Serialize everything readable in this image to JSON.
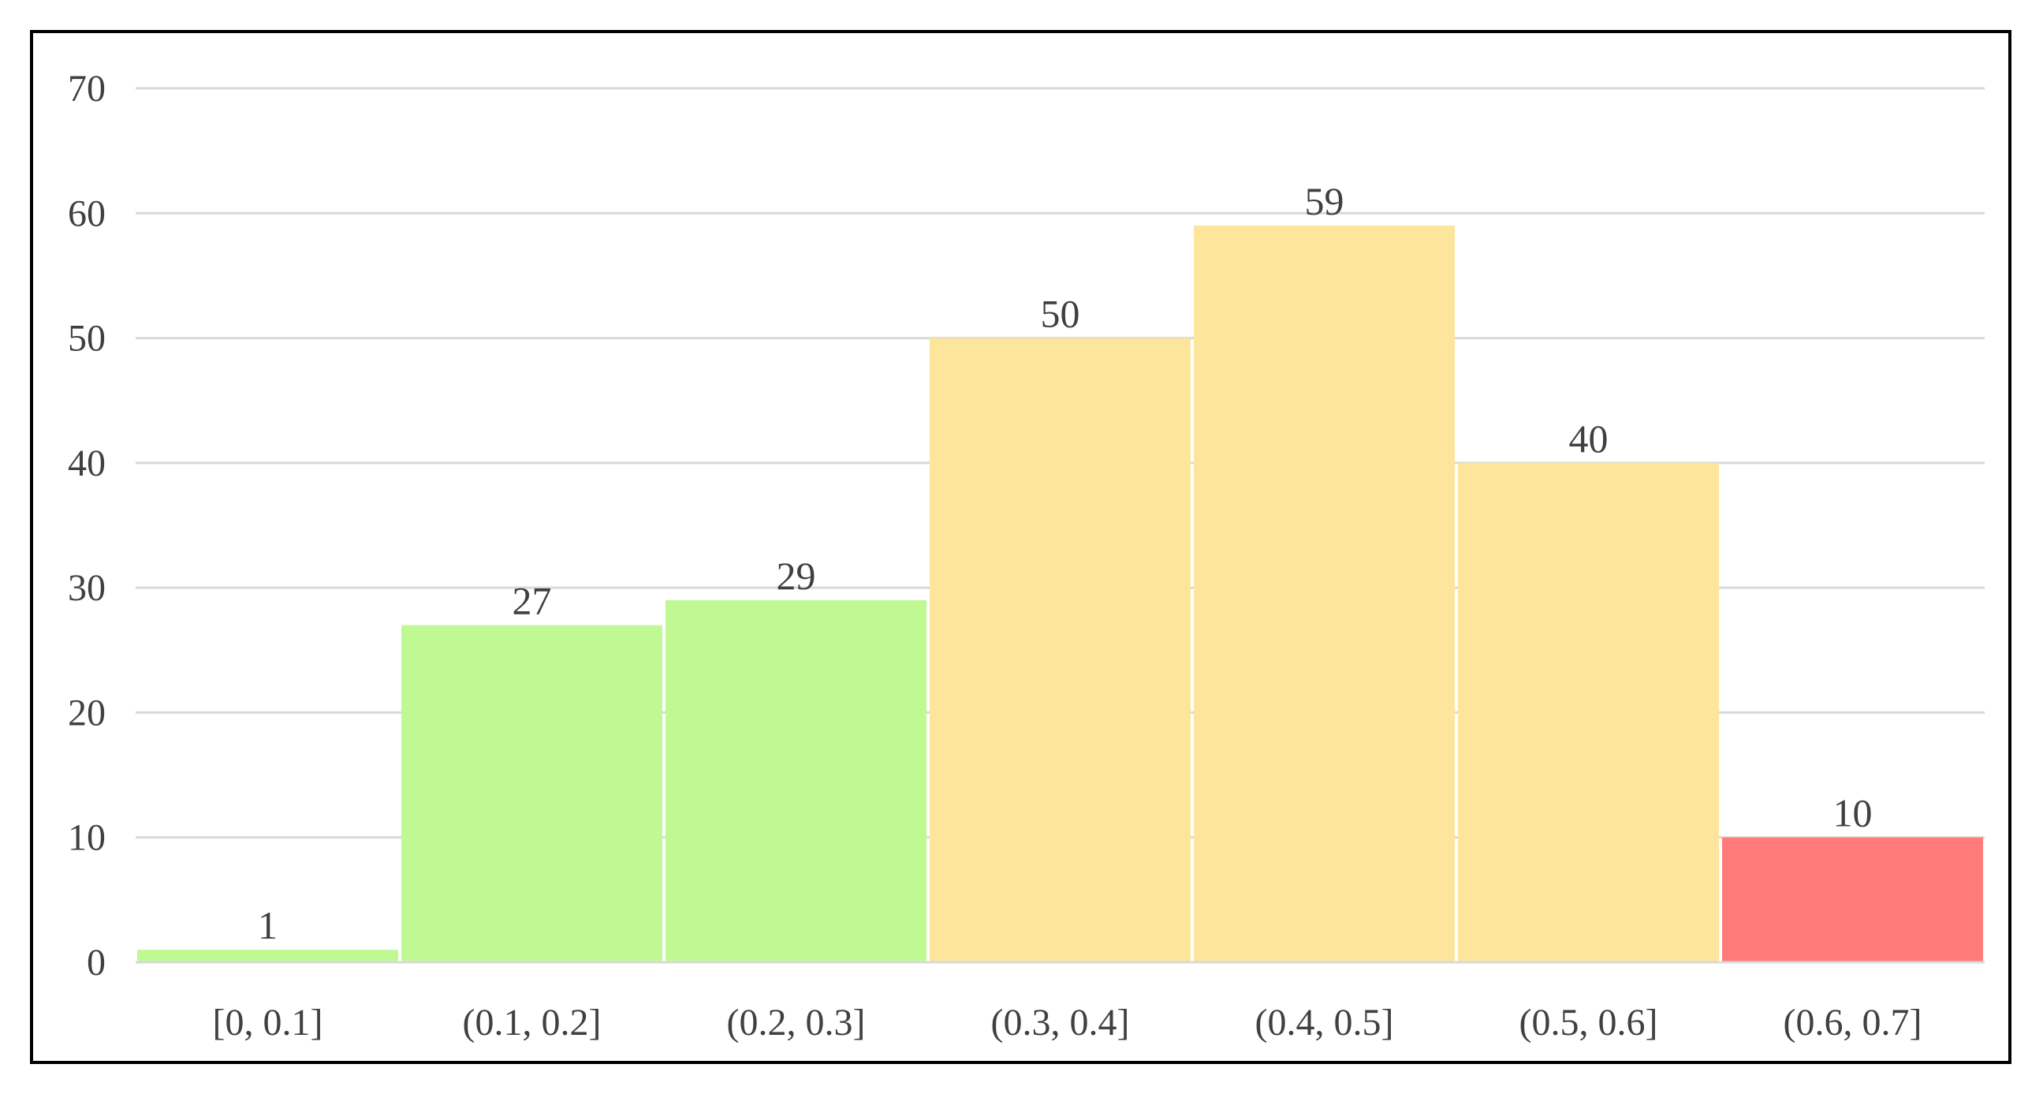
{
  "chart_data": {
    "type": "bar",
    "categories": [
      "[0, 0.1]",
      "(0.1, 0.2]",
      "(0.2, 0.3]",
      "(0.3, 0.4]",
      "(0.4, 0.5]",
      "(0.5, 0.6]",
      "(0.6, 0.7]"
    ],
    "values": [
      1,
      27,
      29,
      50,
      59,
      40,
      10
    ],
    "bar_colors": [
      "#c0f994",
      "#c0f994",
      "#c0f994",
      "#fde59b",
      "#fde59b",
      "#fde59b",
      "#ff7b7b"
    ],
    "title": "",
    "xlabel": "",
    "ylabel": "",
    "ylim": [
      0,
      70
    ],
    "yticks": [
      0,
      10,
      20,
      30,
      40,
      50,
      60,
      70
    ],
    "grid": true,
    "legend": "none"
  }
}
